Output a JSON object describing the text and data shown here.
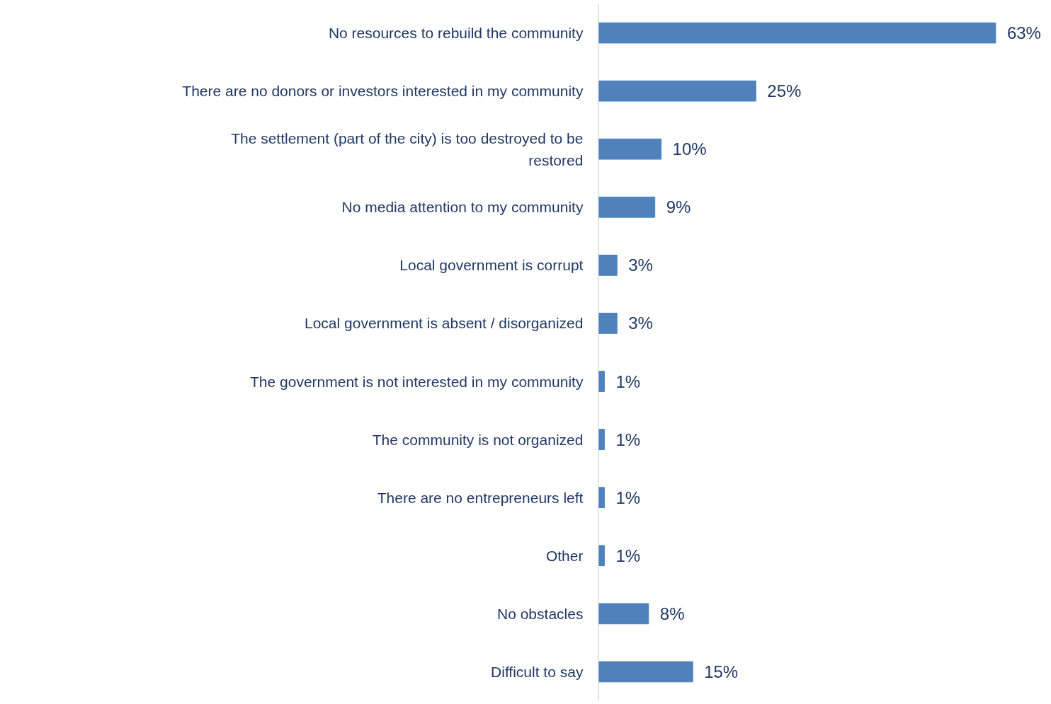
{
  "chart_data": {
    "type": "bar",
    "orientation": "horizontal",
    "categories": [
      "No resources to rebuild the community",
      "There are no donors or investors interested in my community",
      "The settlement (part of the city) is too destroyed to be restored",
      "No media attention to my community",
      "Local government is corrupt",
      "Local government is absent / disorganized",
      "The government is not interested in my community",
      "The community is not organized",
      "There are no entrepreneurs left",
      "Other",
      "No obstacles",
      "Difficult to say"
    ],
    "values": [
      63,
      25,
      10,
      9,
      3,
      3,
      1,
      1,
      1,
      1,
      8,
      15
    ],
    "value_labels": [
      "63%",
      "25%",
      "10%",
      "9%",
      "3%",
      "3%",
      "1%",
      "1%",
      "1%",
      "1%",
      "8%",
      "15%"
    ],
    "color": "#4f81bd",
    "grid": false
  }
}
